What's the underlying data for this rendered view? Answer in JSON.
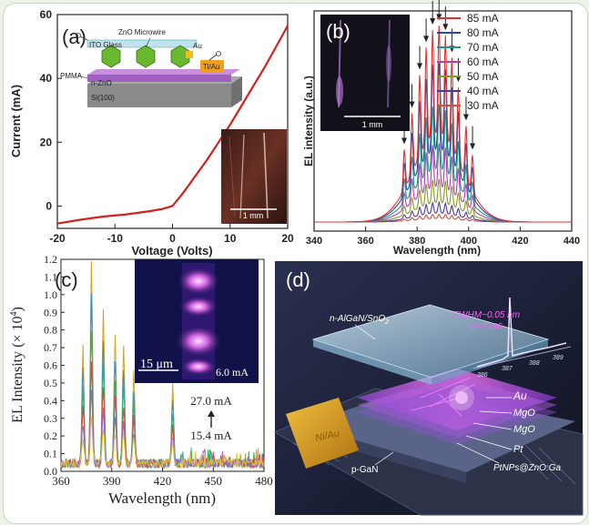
{
  "chart_data": [
    {
      "panel": "(a)",
      "type": "line",
      "xlabel": "Voltage (Volts)",
      "ylabel": "Current (mA)",
      "xlim": [
        -20,
        20
      ],
      "ylim": [
        -7,
        60
      ],
      "xticks": [
        -20,
        -10,
        0,
        10,
        20
      ],
      "yticks": [
        0,
        20,
        40,
        60
      ],
      "color": "#d42020",
      "x": [
        -20,
        -16,
        -12,
        -8,
        -4,
        -2,
        0,
        2,
        4,
        6,
        8,
        10,
        12,
        14,
        16,
        18,
        20
      ],
      "y": [
        -5.5,
        -4.3,
        -3.3,
        -2.6,
        -1.6,
        -1.0,
        0,
        4.5,
        9.5,
        14.5,
        20,
        25.5,
        31.5,
        37.5,
        43.5,
        50,
        56.5
      ],
      "inset_diagram": {
        "labels": [
          "ZnO Microwire",
          "ITO Glass",
          "Au",
          "Ti/Au",
          "n-ZnO",
          "PMMA",
          "Si(100)"
        ]
      },
      "inset_photo": {
        "scale_bar": "1 mm"
      }
    },
    {
      "panel": "(b)",
      "type": "line",
      "xlabel": "Wavelength (nm)",
      "ylabel": "EL intensity (a.u.)",
      "xlim": [
        340,
        440
      ],
      "xticks": [
        340,
        360,
        380,
        400,
        420,
        440
      ],
      "center_nm": 388,
      "series": [
        {
          "name": "85 mA",
          "color": "#e03030",
          "amplitude": 1.0
        },
        {
          "name": "80 mA",
          "color": "#2a4aa0",
          "amplitude": 0.82
        },
        {
          "name": "70 mA",
          "color": "#1a9a8a",
          "amplitude": 0.6
        },
        {
          "name": "60 mA",
          "color": "#b040b0",
          "amplitude": 0.4
        },
        {
          "name": "50 mA",
          "color": "#8a9a20",
          "amplitude": 0.22
        },
        {
          "name": "40 mA",
          "color": "#4a3aa0",
          "amplitude": 0.1
        },
        {
          "name": "30 mA",
          "color": "#d05040",
          "amplitude": 0.04
        }
      ],
      "inset_photo": {
        "scale_bar": "1 mm"
      }
    },
    {
      "panel": "(c)",
      "type": "line",
      "xlabel": "Wavelength (nm)",
      "ylabel": "EL Intensity (× 10",
      "ylabel_sup": "4",
      "ylabel_end": ")",
      "xlim": [
        360,
        480
      ],
      "ylim": [
        0,
        1.2
      ],
      "xticks": [
        360,
        390,
        420,
        450,
        480
      ],
      "yticks": [
        0.0,
        0.1,
        0.2,
        0.3,
        0.4,
        0.5,
        0.6,
        0.7,
        0.8,
        0.9,
        1.0,
        1.1,
        1.2
      ],
      "peaks_nm": [
        373,
        378,
        385,
        392,
        397,
        403,
        426
      ],
      "peaks_max": [
        0.65,
        1.15,
        0.86,
        0.73,
        0.65,
        0.52,
        0.45
      ],
      "annotations": [
        "27.0 mA",
        "15.4 mA"
      ],
      "series_colors": [
        "#d9a520",
        "#3a8fd0",
        "#3cb060",
        "#d04a3a",
        "#9a6ad0",
        "#e0c040"
      ],
      "inset_photo": {
        "scale_bar": "15 μm",
        "current": "6.0 mA"
      }
    },
    {
      "panel": "(d)",
      "type": "diagram",
      "labels": {
        "top_layer": "n-AlGaN/SnO",
        "top_layer_sub": "2",
        "fwhm": "FWHM~0.05 nm",
        "q": "Q~7746",
        "spec_ticks": [
          "386",
          "387",
          "388",
          "389"
        ],
        "au": "Au",
        "mgo1": "MgO",
        "mgo2": "MgO",
        "pt": "Pt",
        "ptnps": "PtNPs@ZnO:Ga",
        "pgan": "p-GaN",
        "niau": "Ni/Au"
      }
    }
  ]
}
